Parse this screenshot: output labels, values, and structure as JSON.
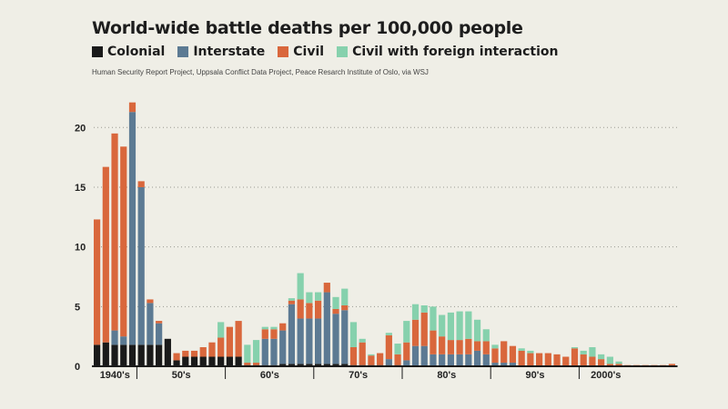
{
  "chart_data": {
    "type": "bar",
    "stacked": true,
    "title": "World-wide battle deaths per 100,000 people",
    "source": "Human Security Report Project, Uppsala Conflict Data Project, Peace Resarch Institute of Oslo, via WSJ",
    "ylim": [
      0,
      22
    ],
    "yticks": [
      0,
      5,
      10,
      15,
      20
    ],
    "grid": "horizontal-dotted",
    "legend_position": "top-left",
    "series": [
      {
        "name": "Colonial",
        "color": "#1a1a1a",
        "values": [
          1.8,
          2,
          1.8,
          1.8,
          1.8,
          1.8,
          1.8,
          1.8,
          2.3,
          0.5,
          0.8,
          0.8,
          0.8,
          0.8,
          0.8,
          0.8,
          0.8,
          0.1,
          0.1,
          0.1,
          0.1,
          0.2,
          0.2,
          0.2,
          0.2,
          0.2,
          0.2,
          0.2,
          0.2,
          0.1,
          0.1,
          0.1,
          0.1,
          0.1,
          0.1,
          0,
          0,
          0,
          0,
          0,
          0,
          0,
          0,
          0,
          0,
          0,
          0,
          0,
          0,
          0,
          0,
          0,
          0,
          0,
          0,
          0,
          0,
          0,
          0,
          0,
          0,
          0,
          0,
          0,
          0,
          0
        ]
      },
      {
        "name": "Interstate",
        "color": "#5c7a93",
        "values": [
          0,
          0,
          1.2,
          0.7,
          19.5,
          13.2,
          3.5,
          1.8,
          0,
          0,
          0,
          0,
          0,
          0,
          0,
          0,
          0,
          0,
          0,
          2.2,
          2.2,
          2.8,
          5,
          3.8,
          3.8,
          3.8,
          6,
          4.2,
          4.5,
          0,
          0,
          0,
          0,
          0.5,
          0,
          0.5,
          1.7,
          1.7,
          1,
          1,
          1,
          1,
          1,
          1.3,
          1,
          0.3,
          0.3,
          0.3,
          0,
          0,
          0,
          0,
          0,
          0,
          0,
          0,
          0,
          0,
          0,
          0,
          0,
          0,
          0,
          0,
          0,
          0
        ]
      },
      {
        "name": "Civil",
        "color": "#d9673c",
        "values": [
          10.5,
          14.7,
          16.5,
          15.9,
          0.8,
          0.5,
          0.3,
          0.2,
          0,
          0.6,
          0.5,
          0.5,
          0.8,
          1.2,
          1.6,
          2.5,
          3,
          0.2,
          0.2,
          0.8,
          0.8,
          0.6,
          0.3,
          1.6,
          1.3,
          1.5,
          0.8,
          0.4,
          0.4,
          1.5,
          1.9,
          0.8,
          1,
          2,
          0.9,
          1.5,
          2.2,
          2.8,
          2,
          1.5,
          1.2,
          1.2,
          1.3,
          0.8,
          1.1,
          1.2,
          1.8,
          1.4,
          1.3,
          1.1,
          1.1,
          1.1,
          1,
          0.8,
          1.5,
          1,
          0.8,
          0.6,
          0.2,
          0.2,
          0.1,
          0.1,
          0.1,
          0.1,
          0.1,
          0.2
        ]
      },
      {
        "name": "Civil with foreign interaction",
        "color": "#86d1ad",
        "values": [
          0,
          0,
          0,
          0,
          0,
          0,
          0,
          0,
          0,
          0,
          0,
          0,
          0,
          0,
          1.3,
          0,
          0,
          1.5,
          1.9,
          0.2,
          0.2,
          0,
          0.2,
          2.2,
          0.9,
          0.7,
          0,
          1,
          1.4,
          2.1,
          0.3,
          0.1,
          0,
          0.2,
          0.9,
          1.8,
          1.3,
          0.6,
          2,
          1.8,
          2.3,
          2.4,
          2.3,
          1.8,
          1,
          0.3,
          0,
          0,
          0.2,
          0.2,
          0,
          0,
          0,
          0,
          0.1,
          0.3,
          0.8,
          0.4,
          0.6,
          0.2,
          0,
          0,
          0,
          0,
          0,
          0
        ]
      }
    ],
    "decades": [
      {
        "label": "1940's",
        "start": 0,
        "count": 5
      },
      {
        "label": "50's",
        "start": 5,
        "count": 10
      },
      {
        "label": "60's",
        "start": 15,
        "count": 10
      },
      {
        "label": "70's",
        "start": 25,
        "count": 10
      },
      {
        "label": "80's",
        "start": 35,
        "count": 10
      },
      {
        "label": "90's",
        "start": 45,
        "count": 10
      },
      {
        "label": "2000's",
        "start": 55,
        "count": 6
      }
    ]
  }
}
